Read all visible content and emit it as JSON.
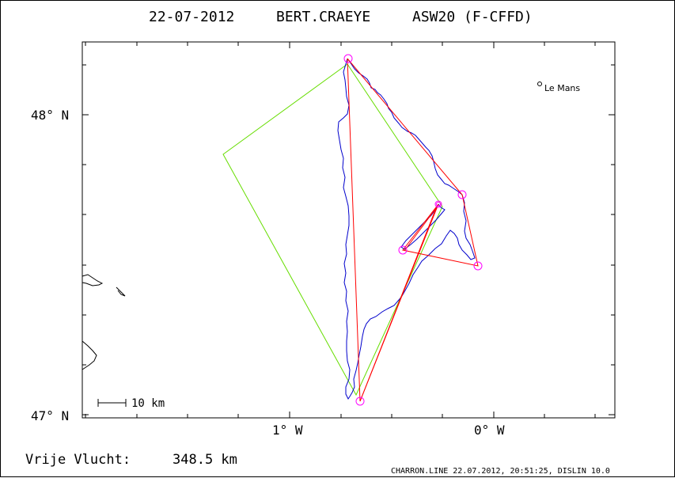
{
  "title": {
    "date": "22-07-2012",
    "pilot": "BERT.CRAEYE",
    "glider": "ASW20 (F-CFFD)"
  },
  "axes": {
    "lat_labels": [
      "48° N",
      "47° N"
    ],
    "lon_labels": [
      "1° W",
      "0° W"
    ]
  },
  "places": [
    {
      "name": "Le Mans"
    }
  ],
  "scale_bar": {
    "label": "10 km"
  },
  "distance": {
    "label": "Vrije Vlucht:",
    "value": "348.5 km"
  },
  "footer": "CHARRON.LINE 22.07.2012, 20:51:25, DISLIN 10.0",
  "colors": {
    "track": "#0000cc",
    "task": "#ff0000",
    "alternate_route": "#66dd00",
    "turnpoint": "#ff00ff",
    "coast": "#000000"
  }
}
